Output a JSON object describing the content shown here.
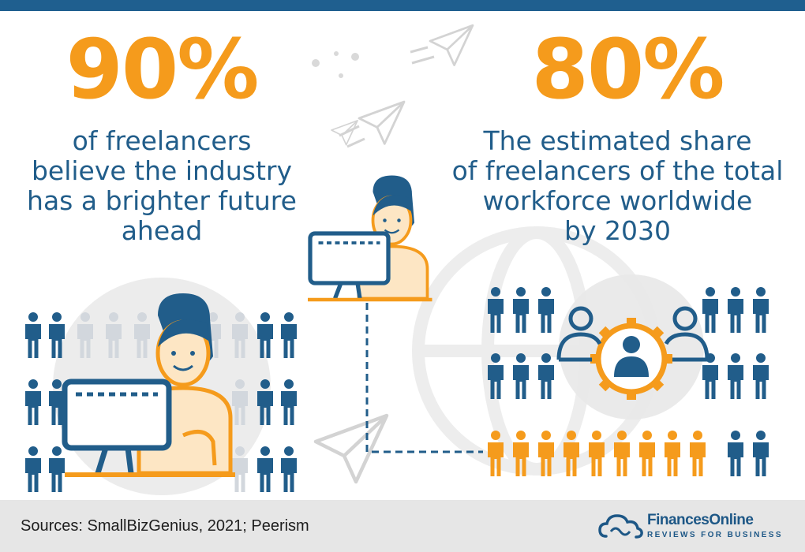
{
  "left": {
    "stat": "90%",
    "lines": [
      "of freelancers",
      "believe the industry",
      "has a brighter future",
      "ahead"
    ]
  },
  "right": {
    "stat": "80%",
    "lines": [
      "The estimated share",
      "of freelancers of the total",
      "workforce worldwide",
      "by 2030"
    ]
  },
  "footer": {
    "sources": "Sources: SmallBizGenius, 2021; Peerism",
    "brand_name": "FinancesOnline",
    "brand_tagline": "REVIEWS FOR BUSINESS"
  },
  "colors": {
    "orange": "#f59b1c",
    "navy": "#215d8a",
    "light_gray": "#e6e6e6"
  },
  "icons": [
    "person-icon",
    "freelancer-at-computer-icon",
    "paper-plane-icon",
    "globe-icon",
    "gear-team-icon",
    "cloud-logo-icon"
  ]
}
